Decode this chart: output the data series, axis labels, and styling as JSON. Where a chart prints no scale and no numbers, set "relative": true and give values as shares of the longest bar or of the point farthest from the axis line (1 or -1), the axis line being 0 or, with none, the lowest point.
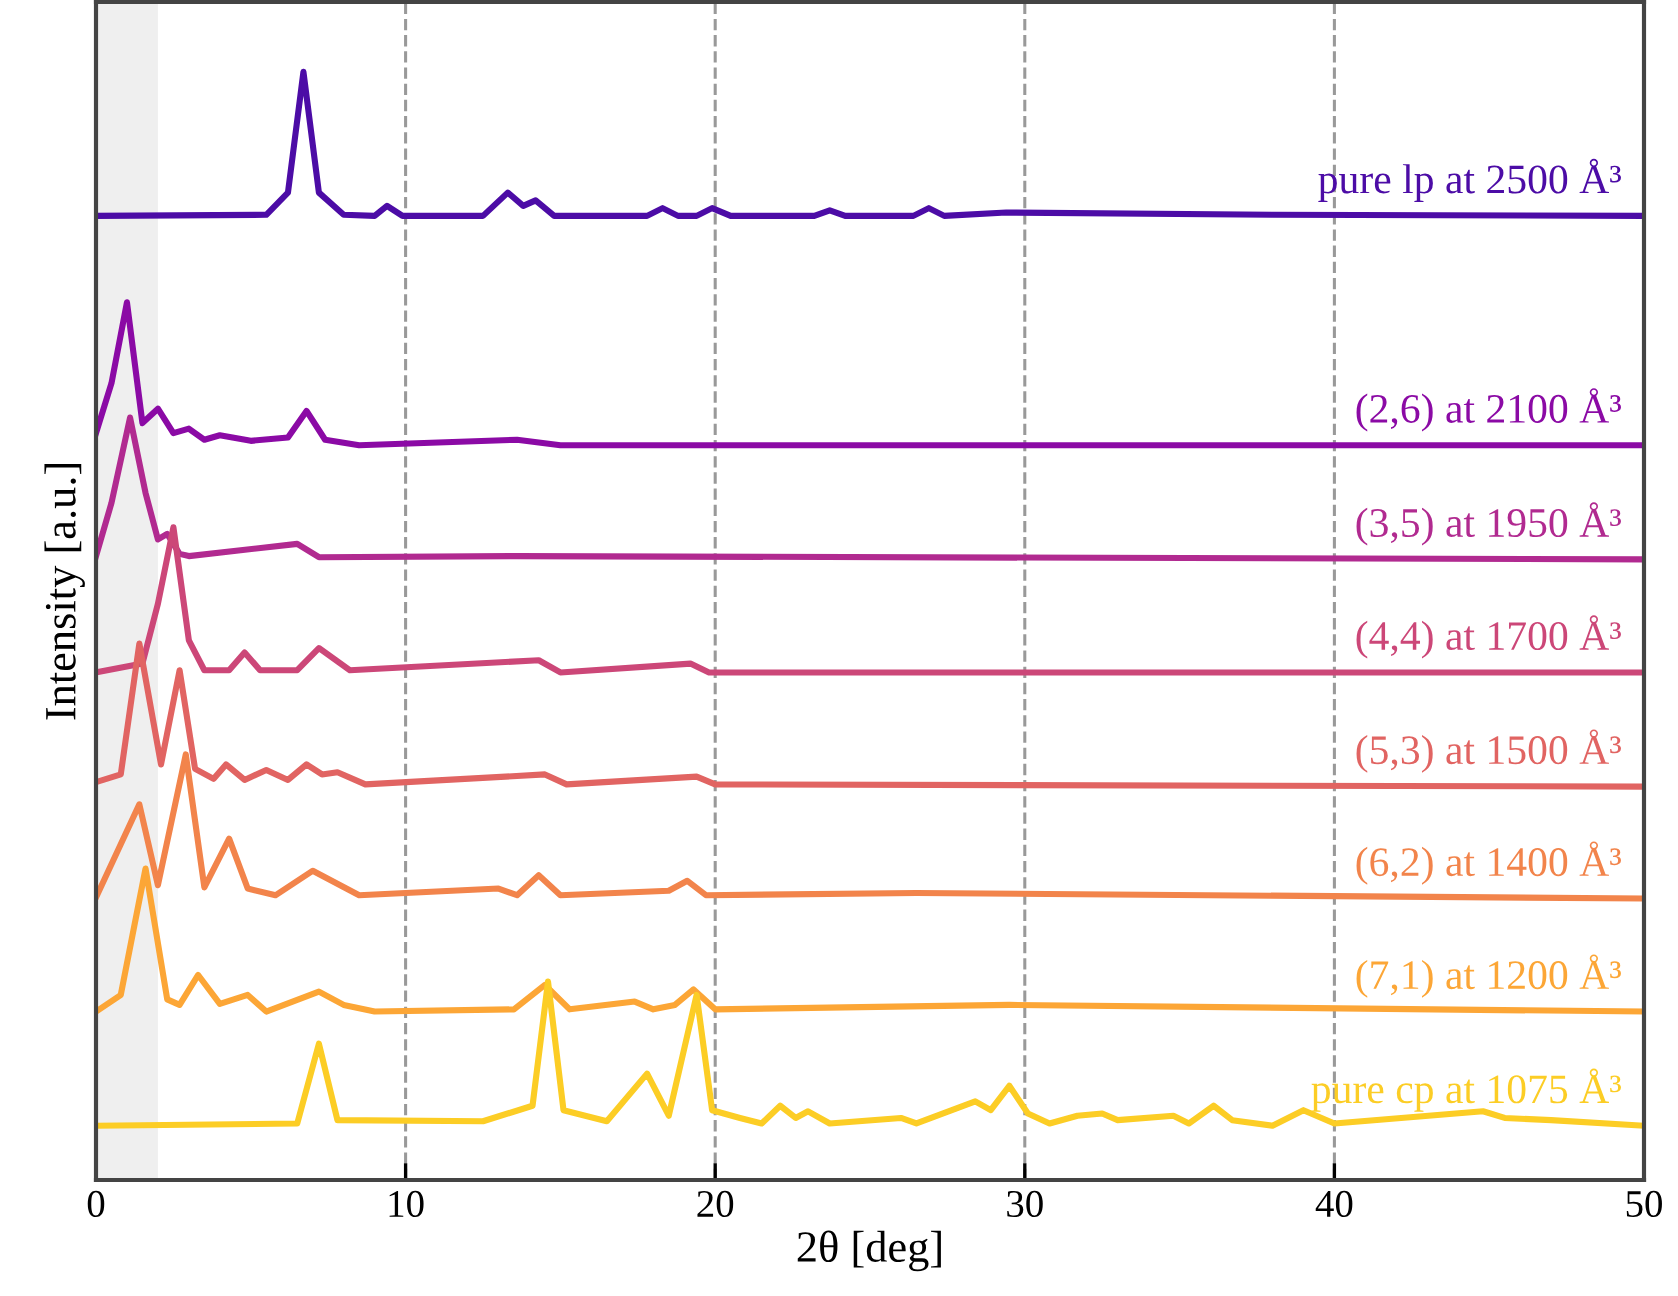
{
  "chart_data": {
    "type": "line",
    "relative": true,
    "xlabel": "2θ [deg]",
    "ylabel": "Intensity [a.u.]",
    "xlim": [
      0,
      50
    ],
    "xticks": [
      0,
      10,
      20,
      30,
      40,
      50
    ],
    "grid": "x",
    "line_style": "solid",
    "marker": "none",
    "bands": [
      {
        "axis": "x",
        "from": 0,
        "to": 2,
        "color": "#efefef"
      }
    ],
    "series": [
      {
        "name": "pure lp at 2500 Å³",
        "color": "#4c0ca6",
        "x": [
          0,
          5.5,
          6.2,
          6.7,
          7.2,
          8,
          9.0,
          9.4,
          9.9,
          12.5,
          13.3,
          13.8,
          14.2,
          14.8,
          17.8,
          18.3,
          18.8,
          19.4,
          19.9,
          20.5,
          23.2,
          23.7,
          24.2,
          26.4,
          26.9,
          27.4,
          29.4,
          38,
          50
        ],
        "values": [
          0.87,
          0.871,
          0.891,
          1.0,
          0.891,
          0.871,
          0.87,
          0.879,
          0.87,
          0.87,
          0.891,
          0.879,
          0.884,
          0.87,
          0.87,
          0.877,
          0.87,
          0.87,
          0.877,
          0.87,
          0.87,
          0.875,
          0.87,
          0.87,
          0.877,
          0.87,
          0.873,
          0.871,
          0.87
        ]
      },
      {
        "name": "(2,6) at 2100 Å³",
        "color": "#8b0aa5",
        "x": [
          0,
          0.5,
          1.0,
          1.5,
          2.0,
          2.5,
          3.0,
          3.5,
          4.0,
          5.0,
          6.2,
          6.8,
          7.4,
          8.5,
          13.6,
          15,
          50
        ],
        "values": [
          0.674,
          0.719,
          0.792,
          0.683,
          0.696,
          0.674,
          0.678,
          0.668,
          0.672,
          0.667,
          0.67,
          0.694,
          0.668,
          0.663,
          0.668,
          0.663,
          0.663
        ]
      },
      {
        "name": "(3,5) at 1950 Å³",
        "color": "#b12a90",
        "x": [
          0,
          0.5,
          1.1,
          1.6,
          2.0,
          2.3,
          2.7,
          3.0,
          6.5,
          7.2,
          13.6,
          50
        ],
        "values": [
          0.563,
          0.611,
          0.688,
          0.62,
          0.578,
          0.583,
          0.565,
          0.563,
          0.574,
          0.562,
          0.563,
          0.56
        ]
      },
      {
        "name": "(4,4) at 1700 Å³",
        "color": "#cc4778",
        "x": [
          0,
          1.5,
          2.0,
          2.5,
          3.0,
          3.5,
          4.3,
          4.8,
          5.3,
          6.5,
          7.2,
          8.2,
          14.3,
          15,
          19.2,
          19.8,
          50
        ],
        "values": [
          0.458,
          0.466,
          0.52,
          0.589,
          0.487,
          0.46,
          0.46,
          0.476,
          0.46,
          0.46,
          0.48,
          0.46,
          0.469,
          0.458,
          0.466,
          0.458,
          0.458
        ]
      },
      {
        "name": "(5,3) at 1500 Å³",
        "color": "#e16462",
        "x": [
          0,
          0.8,
          1.4,
          2.1,
          2.7,
          3.2,
          3.8,
          4.2,
          4.8,
          5.5,
          6.2,
          6.8,
          7.3,
          7.8,
          8.7,
          14.5,
          15.2,
          19.4,
          20,
          50
        ],
        "values": [
          0.359,
          0.366,
          0.484,
          0.375,
          0.46,
          0.371,
          0.362,
          0.375,
          0.361,
          0.37,
          0.361,
          0.375,
          0.366,
          0.368,
          0.357,
          0.366,
          0.357,
          0.364,
          0.357,
          0.355
        ]
      },
      {
        "name": "(6,2) at 1400 Å³",
        "color": "#f2844b",
        "x": [
          0,
          1.4,
          2.0,
          2.9,
          3.5,
          4.3,
          4.9,
          5.8,
          7.0,
          8.5,
          13.0,
          13.6,
          14.3,
          15,
          18.5,
          19.1,
          19.7,
          26.5,
          50
        ],
        "values": [
          0.255,
          0.339,
          0.266,
          0.384,
          0.264,
          0.308,
          0.263,
          0.257,
          0.279,
          0.257,
          0.263,
          0.257,
          0.275,
          0.257,
          0.261,
          0.27,
          0.257,
          0.259,
          0.254
        ]
      },
      {
        "name": "(7,1) at 1200 Å³",
        "color": "#fca636",
        "x": [
          0,
          0.8,
          1.6,
          2.3,
          2.7,
          3.3,
          4.0,
          4.9,
          5.5,
          7.2,
          8,
          9,
          13.5,
          14.5,
          15.3,
          17.4,
          18,
          18.7,
          19.3,
          20,
          29.5,
          50
        ],
        "values": [
          0.152,
          0.167,
          0.281,
          0.163,
          0.158,
          0.185,
          0.159,
          0.167,
          0.152,
          0.17,
          0.158,
          0.152,
          0.154,
          0.176,
          0.154,
          0.161,
          0.154,
          0.158,
          0.172,
          0.154,
          0.158,
          0.152
        ]
      },
      {
        "name": "pure cp at 1075 Å³",
        "color": "#fccd25",
        "x": [
          0,
          6.5,
          7.2,
          7.8,
          12.5,
          14.1,
          14.6,
          15.1,
          16.5,
          17.8,
          18.5,
          19.4,
          19.9,
          20.8,
          21.5,
          22.1,
          22.6,
          23.0,
          23.7,
          26,
          26.5,
          28.4,
          28.9,
          29.5,
          30.1,
          30.8,
          31.7,
          32.5,
          33,
          34.8,
          35.3,
          36.1,
          36.7,
          38,
          39,
          40,
          44.8,
          45.5,
          47,
          50
        ],
        "values": [
          0.049,
          0.051,
          0.123,
          0.054,
          0.053,
          0.067,
          0.179,
          0.063,
          0.053,
          0.096,
          0.058,
          0.167,
          0.063,
          0.056,
          0.051,
          0.067,
          0.056,
          0.062,
          0.051,
          0.056,
          0.051,
          0.071,
          0.063,
          0.085,
          0.06,
          0.051,
          0.058,
          0.06,
          0.054,
          0.058,
          0.051,
          0.067,
          0.054,
          0.049,
          0.063,
          0.051,
          0.062,
          0.056,
          0.054,
          0.049
        ]
      }
    ]
  }
}
